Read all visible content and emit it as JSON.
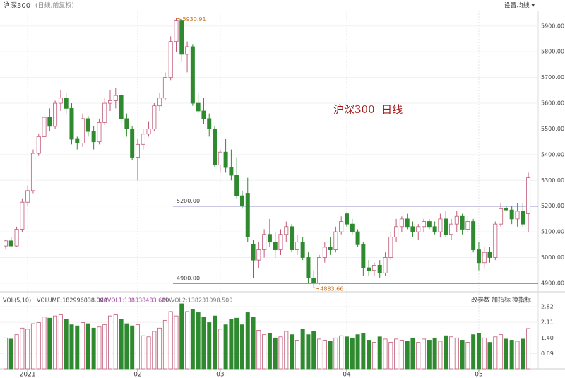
{
  "chart_data": {
    "type": "candlestick",
    "title": "沪深300",
    "subtitle": "(日线,前复权)",
    "menu": "设置均线 ▾",
    "annotation_text": "沪深300  日线",
    "up_color": "#c05a78",
    "down_color": "#2f8a2f",
    "ylim": [
      4875,
      5960
    ],
    "yticks": [
      {
        "value": 4900,
        "label": "4900.00"
      },
      {
        "value": 5000,
        "label": "5000.00"
      },
      {
        "value": 5100,
        "label": "5100.00"
      },
      {
        "value": 5200,
        "label": "5200.00"
      },
      {
        "value": 5300,
        "label": "5300.00"
      },
      {
        "value": 5400,
        "label": "5400.00"
      },
      {
        "value": 5500,
        "label": "5500.00"
      },
      {
        "value": 5600,
        "label": "5600.00"
      },
      {
        "value": 5700,
        "label": "5700.00"
      },
      {
        "value": 5800,
        "label": "5800.00"
      },
      {
        "value": 5900,
        "label": "5900.00"
      }
    ],
    "hlines": [
      {
        "value": 5200,
        "label": "5200.00"
      },
      {
        "value": 4900,
        "label": "4900.00"
      }
    ],
    "annotations": [
      {
        "value": 5930.91,
        "label": "5930.91"
      },
      {
        "value": 4883.66,
        "label": "4883.66"
      }
    ],
    "categories": [
      null,
      null,
      null,
      null,
      "2021",
      null,
      null,
      null,
      null,
      null,
      null,
      null,
      null,
      null,
      null,
      null,
      null,
      null,
      null,
      null,
      null,
      null,
      null,
      null,
      "02",
      null,
      null,
      null,
      null,
      null,
      null,
      null,
      null,
      null,
      null,
      null,
      null,
      null,
      null,
      "03",
      null,
      null,
      null,
      null,
      null,
      null,
      null,
      null,
      null,
      null,
      null,
      null,
      null,
      null,
      null,
      null,
      null,
      null,
      null,
      null,
      null,
      null,
      "04",
      null,
      null,
      null,
      null,
      null,
      null,
      null,
      null,
      null,
      null,
      null,
      null,
      null,
      null,
      null,
      null,
      null,
      null,
      null,
      null,
      null,
      null,
      null,
      "05",
      null,
      null,
      null,
      null,
      null,
      null,
      null,
      null,
      null
    ],
    "ohlc": [
      [
        5045,
        5070,
        5035,
        5065
      ],
      [
        5065,
        5080,
        5040,
        5045
      ],
      [
        5045,
        5120,
        5040,
        5110
      ],
      [
        5110,
        5230,
        5100,
        5215
      ],
      [
        5215,
        5280,
        5200,
        5260
      ],
      [
        5260,
        5420,
        5250,
        5405
      ],
      [
        5405,
        5480,
        5395,
        5470
      ],
      [
        5470,
        5560,
        5460,
        5545
      ],
      [
        5545,
        5580,
        5490,
        5510
      ],
      [
        5510,
        5610,
        5500,
        5600
      ],
      [
        5600,
        5650,
        5570,
        5620
      ],
      [
        5620,
        5640,
        5560,
        5580
      ],
      [
        5580,
        5600,
        5440,
        5460
      ],
      [
        5460,
        5470,
        5420,
        5445
      ],
      [
        5445,
        5560,
        5430,
        5540
      ],
      [
        5540,
        5550,
        5470,
        5490
      ],
      [
        5490,
        5510,
        5420,
        5450
      ],
      [
        5450,
        5540,
        5440,
        5525
      ],
      [
        5525,
        5620,
        5515,
        5600
      ],
      [
        5600,
        5650,
        5570,
        5610
      ],
      [
        5610,
        5660,
        5580,
        5630
      ],
      [
        5630,
        5640,
        5520,
        5540
      ],
      [
        5540,
        5560,
        5470,
        5500
      ],
      [
        5500,
        5510,
        5380,
        5390
      ],
      [
        5390,
        5460,
        5300,
        5440
      ],
      [
        5440,
        5500,
        5420,
        5480
      ],
      [
        5480,
        5530,
        5470,
        5500
      ],
      [
        5500,
        5600,
        5490,
        5590
      ],
      [
        5590,
        5640,
        5570,
        5620
      ],
      [
        5620,
        5720,
        5610,
        5700
      ],
      [
        5700,
        5860,
        5690,
        5840
      ],
      [
        5840,
        5930.91,
        5800,
        5920
      ],
      [
        5920,
        5925,
        5760,
        5790
      ],
      [
        5790,
        5840,
        5720,
        5820
      ],
      [
        5820,
        5830,
        5590,
        5600
      ],
      [
        5600,
        5640,
        5560,
        5570
      ],
      [
        5570,
        5620,
        5520,
        5540
      ],
      [
        5540,
        5560,
        5470,
        5500
      ],
      [
        5500,
        5510,
        5350,
        5360
      ],
      [
        5360,
        5420,
        5330,
        5410
      ],
      [
        5410,
        5460,
        5330,
        5350
      ],
      [
        5350,
        5420,
        5300,
        5320
      ],
      [
        5320,
        5390,
        5230,
        5240
      ],
      [
        5240,
        5260,
        5190,
        5200
      ],
      [
        5250,
        5310,
        5060,
        5080
      ],
      [
        5050,
        5070,
        4920,
        4990
      ],
      [
        4990,
        5060,
        4960,
        5030
      ],
      [
        5030,
        5110,
        5000,
        5090
      ],
      [
        5090,
        5150,
        5040,
        5060
      ],
      [
        5060,
        5100,
        5000,
        5030
      ],
      [
        5030,
        5110,
        5010,
        5090
      ],
      [
        5090,
        5140,
        5060,
        5120
      ],
      [
        5120,
        5130,
        5020,
        5030
      ],
      [
        5030,
        5090,
        5010,
        5060
      ],
      [
        5060,
        5080,
        4990,
        5000
      ],
      [
        5000,
        5020,
        4900,
        4920
      ],
      [
        4920,
        4950,
        4883.66,
        4900
      ],
      [
        4900,
        5010,
        4895,
        5000
      ],
      [
        5000,
        5060,
        4980,
        5040
      ],
      [
        5040,
        5080,
        5010,
        5030
      ],
      [
        5030,
        5120,
        5020,
        5100
      ],
      [
        5100,
        5160,
        5090,
        5140
      ],
      [
        5170,
        5175,
        5120,
        5130
      ],
      [
        5130,
        5150,
        5090,
        5100
      ],
      [
        5100,
        5110,
        5040,
        5050
      ],
      [
        5050,
        5060,
        4930,
        4960
      ],
      [
        4960,
        4990,
        4930,
        4950
      ],
      [
        4950,
        4980,
        4930,
        4970
      ],
      [
        4970,
        4990,
        4920,
        4940
      ],
      [
        4940,
        5020,
        4930,
        5000
      ],
      [
        5000,
        5100,
        4990,
        5080
      ],
      [
        5080,
        5150,
        5060,
        5120
      ],
      [
        5120,
        5160,
        5100,
        5150
      ],
      [
        5150,
        5170,
        5110,
        5120
      ],
      [
        5120,
        5140,
        5080,
        5100
      ],
      [
        5100,
        5130,
        5070,
        5120
      ],
      [
        5120,
        5150,
        5100,
        5140
      ],
      [
        5140,
        5150,
        5110,
        5120
      ],
      [
        5120,
        5140,
        5090,
        5100
      ],
      [
        5100,
        5170,
        5080,
        5150
      ],
      [
        5150,
        5180,
        5080,
        5090
      ],
      [
        5090,
        5150,
        5070,
        5130
      ],
      [
        5130,
        5180,
        5100,
        5160
      ],
      [
        5160,
        5170,
        5090,
        5110
      ],
      [
        5110,
        5160,
        5100,
        5140
      ],
      [
        5140,
        5150,
        5020,
        5030
      ],
      [
        5030,
        5060,
        4950,
        4980
      ],
      [
        4980,
        5040,
        4960,
        5020
      ],
      [
        5020,
        5040,
        4980,
        5000
      ],
      [
        5000,
        5140,
        4990,
        5130
      ],
      [
        5130,
        5210,
        5120,
        5190
      ],
      [
        5190,
        5200,
        5180,
        5185
      ],
      [
        5185,
        5200,
        5130,
        5150
      ],
      [
        5150,
        5210,
        5120,
        5180
      ],
      [
        5180,
        5210,
        5120,
        5130
      ],
      [
        5170,
        5330,
        5100,
        5310
      ]
    ],
    "volume": [
      1.4,
      1.35,
      1.55,
      1.85,
      1.8,
      2.05,
      2.1,
      2.35,
      2.3,
      2.4,
      2.45,
      2.25,
      2.0,
      1.95,
      2.1,
      2.05,
      1.85,
      1.9,
      2.0,
      2.4,
      2.45,
      2.25,
      2.05,
      1.95,
      2.0,
      1.5,
      1.45,
      1.7,
      1.85,
      2.2,
      2.6,
      2.4,
      2.95,
      2.6,
      2.7,
      2.55,
      2.35,
      2.1,
      2.4,
      1.8,
      2.0,
      2.25,
      2.3,
      2.0,
      2.55,
      2.35,
      1.75,
      1.55,
      1.6,
      1.4,
      1.45,
      1.7,
      1.55,
      1.3,
      1.8,
      1.55,
      1.7,
      1.35,
      1.3,
      1.25,
      1.4,
      1.5,
      1.45,
      1.4,
      1.55,
      1.6,
      1.3,
      1.2,
      1.45,
      1.35,
      1.2,
      1.35,
      1.3,
      1.25,
      1.4,
      1.2,
      1.35,
      1.3,
      1.4,
      1.25,
      1.5,
      1.45,
      1.4,
      1.3,
      1.2,
      1.55,
      1.6,
      1.4,
      1.2,
      1.45,
      1.55,
      1.35,
      1.3,
      1.25,
      1.35,
      1.83
    ],
    "vylim": [
      0,
      3.27
    ],
    "vyticks": [
      0.69,
      {
        "value": 1.4,
        "label": "1.40"
      },
      2.11,
      2.82
    ],
    "volume_header": [
      "VOL(5,10)",
      "VOLUME:182996838.000",
      "MAVOL1:138338483.600",
      "MAVOL2:138231098.500"
    ],
    "toolbar": [
      "改参数",
      "加指标",
      "换指标"
    ]
  }
}
